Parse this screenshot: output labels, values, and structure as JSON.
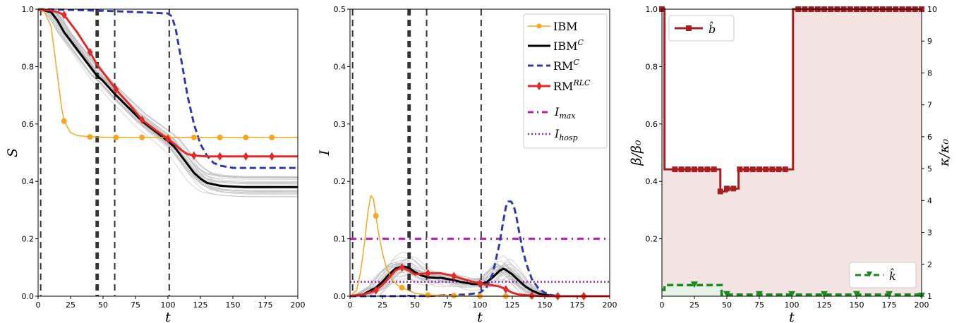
{
  "chart_data": [
    {
      "type": "line",
      "xlabel": "t",
      "ylabel": "S",
      "xlim": [
        0,
        200
      ],
      "ylim": [
        0,
        1
      ],
      "xticks": [
        0,
        25,
        50,
        75,
        100,
        125,
        150,
        175,
        200
      ],
      "yticks": [
        0.0,
        0.2,
        0.4,
        0.6,
        0.8,
        1.0
      ],
      "vlines": [
        2,
        45,
        46,
        59,
        101
      ],
      "series": [
        {
          "name": "IBM",
          "color": "#f5a623",
          "x": [
            0,
            5,
            10,
            14,
            18,
            20,
            25,
            30,
            40,
            60,
            80,
            100,
            120,
            140,
            160,
            180,
            200
          ],
          "y": [
            1.0,
            0.99,
            0.94,
            0.8,
            0.66,
            0.61,
            0.57,
            0.56,
            0.555,
            0.553,
            0.553,
            0.553,
            0.553,
            0.553,
            0.553,
            0.553,
            0.553
          ],
          "markers": [
            20,
            40,
            60,
            80,
            100,
            120,
            140,
            160,
            180
          ]
        },
        {
          "name": "IBM^C",
          "color": "#000000",
          "x": [
            0,
            10,
            15,
            20,
            30,
            40,
            45,
            50,
            60,
            70,
            80,
            90,
            100,
            105,
            110,
            115,
            120,
            125,
            130,
            140,
            150,
            160,
            200
          ],
          "y": [
            1.0,
            0.99,
            0.96,
            0.92,
            0.86,
            0.8,
            0.77,
            0.75,
            0.7,
            0.655,
            0.61,
            0.575,
            0.54,
            0.52,
            0.49,
            0.46,
            0.43,
            0.41,
            0.395,
            0.385,
            0.382,
            0.38,
            0.38
          ]
        },
        {
          "name": "RM^C",
          "color": "#2e3ba8",
          "x": [
            0,
            20,
            60,
            90,
            100,
            103,
            106,
            110,
            115,
            120,
            125,
            130,
            135,
            140,
            150,
            200
          ],
          "y": [
            1.0,
            0.998,
            0.993,
            0.987,
            0.985,
            0.975,
            0.93,
            0.83,
            0.7,
            0.6,
            0.53,
            0.49,
            0.465,
            0.455,
            0.447,
            0.447
          ]
        },
        {
          "name": "RM^RLC",
          "color": "#e02b2b",
          "x": [
            0,
            10,
            15,
            20,
            30,
            40,
            45,
            50,
            60,
            70,
            80,
            90,
            100,
            105,
            110,
            115,
            120,
            130,
            140,
            160,
            180,
            200
          ],
          "y": [
            1.0,
            0.995,
            0.99,
            0.98,
            0.92,
            0.85,
            0.81,
            0.78,
            0.72,
            0.67,
            0.615,
            0.58,
            0.548,
            0.53,
            0.51,
            0.495,
            0.49,
            0.487,
            0.487,
            0.487,
            0.487,
            0.487
          ],
          "markers": [
            20,
            40,
            60,
            80,
            100,
            120,
            140,
            160,
            180
          ]
        }
      ]
    },
    {
      "type": "line",
      "xlabel": "t",
      "ylabel": "I",
      "xlim": [
        0,
        200
      ],
      "ylim": [
        0,
        0.5
      ],
      "xticks": [
        0,
        25,
        50,
        75,
        100,
        125,
        150,
        175,
        200
      ],
      "yticks": [
        0.0,
        0.1,
        0.2,
        0.3,
        0.4,
        0.5
      ],
      "vlines": [
        2,
        45,
        46,
        59,
        101
      ],
      "hlines": [
        {
          "name": "I_max",
          "y": 0.1,
          "color": "#c41ab5"
        },
        {
          "name": "I_hosp",
          "y": 0.025,
          "color": "#a020c0"
        }
      ],
      "series": [
        {
          "name": "IBM",
          "color": "#f5a623",
          "x": [
            0,
            5,
            8,
            11,
            14,
            16,
            18,
            20,
            22,
            25,
            28,
            32,
            36,
            40,
            45,
            50,
            60,
            80,
            100,
            200
          ],
          "y": [
            0.0,
            0.01,
            0.04,
            0.09,
            0.15,
            0.175,
            0.17,
            0.14,
            0.11,
            0.075,
            0.05,
            0.03,
            0.02,
            0.015,
            0.01,
            0.005,
            0.002,
            0.001,
            0.0,
            0.0
          ],
          "markers": [
            20,
            40,
            60,
            80,
            100,
            120,
            140,
            160,
            180
          ]
        },
        {
          "name": "IBM^C",
          "color": "#000000",
          "x": [
            0,
            10,
            20,
            25,
            30,
            35,
            40,
            45,
            50,
            55,
            60,
            65,
            70,
            75,
            80,
            85,
            90,
            95,
            100,
            105,
            110,
            115,
            118,
            120,
            125,
            130,
            135,
            140,
            145,
            150,
            155,
            160,
            200
          ],
          "y": [
            0.0,
            0.003,
            0.015,
            0.025,
            0.038,
            0.048,
            0.052,
            0.05,
            0.042,
            0.036,
            0.033,
            0.032,
            0.032,
            0.03,
            0.028,
            0.025,
            0.023,
            0.021,
            0.021,
            0.024,
            0.033,
            0.044,
            0.048,
            0.046,
            0.038,
            0.027,
            0.017,
            0.01,
            0.005,
            0.002,
            0.001,
            0.0,
            0.0
          ]
        },
        {
          "name": "RM^C",
          "color": "#2e3ba8",
          "x": [
            0,
            60,
            90,
            100,
            105,
            110,
            115,
            118,
            120,
            122,
            124,
            126,
            128,
            130,
            133,
            136,
            140,
            145,
            150,
            155,
            160,
            200
          ],
          "y": [
            0.0,
            0.0003,
            0.003,
            0.006,
            0.015,
            0.04,
            0.09,
            0.13,
            0.155,
            0.165,
            0.165,
            0.158,
            0.14,
            0.115,
            0.08,
            0.055,
            0.03,
            0.014,
            0.006,
            0.002,
            0.0,
            0.0
          ]
        },
        {
          "name": "RM^RLC",
          "color": "#e02b2b",
          "x": [
            0,
            10,
            20,
            25,
            30,
            35,
            40,
            45,
            50,
            60,
            70,
            80,
            90,
            100,
            105,
            110,
            115,
            120,
            125,
            130,
            140,
            150,
            160,
            180,
            200
          ],
          "y": [
            0.0,
            0.003,
            0.01,
            0.02,
            0.032,
            0.045,
            0.05,
            0.045,
            0.038,
            0.04,
            0.04,
            0.035,
            0.028,
            0.022,
            0.02,
            0.019,
            0.017,
            0.012,
            0.006,
            0.003,
            0.001,
            0.0,
            0.0,
            0.0,
            0.0
          ],
          "markers": [
            20,
            40,
            60,
            80,
            100,
            120,
            140,
            160,
            180
          ]
        }
      ]
    },
    {
      "type": "line",
      "xlabel": "t",
      "ylabel": "β/β₀",
      "y2label": "κ/κ₀",
      "xlim": [
        0,
        200
      ],
      "ylim": [
        0,
        1
      ],
      "y2lim": [
        1,
        10
      ],
      "xticks": [
        0,
        25,
        50,
        75,
        100,
        125,
        150,
        175,
        200
      ],
      "yticks": [
        0.2,
        0.4,
        0.6,
        0.8,
        1.0
      ],
      "y2ticks": [
        1,
        2,
        3,
        4,
        5,
        6,
        7,
        8,
        9,
        10
      ],
      "series": [
        {
          "name": "b̂",
          "color": "#a51e22",
          "axis": "left",
          "step": true,
          "x": [
            0,
            2,
            45,
            50,
            59,
            101,
            200
          ],
          "y": [
            1.0,
            0.442,
            0.365,
            0.375,
            0.442,
            1.0,
            1.0
          ],
          "markers": [
            0,
            10,
            15,
            20,
            25,
            30,
            35,
            40,
            45,
            50,
            55,
            60,
            65,
            70,
            75,
            80,
            85,
            90,
            95,
            105,
            110,
            115,
            120,
            125,
            130,
            135,
            140,
            145,
            150,
            155,
            160,
            165,
            170,
            175,
            180,
            185,
            190,
            195,
            200
          ]
        },
        {
          "name": "k̂",
          "color": "#1a8a1f",
          "axis": "right",
          "step": true,
          "x": [
            0,
            2,
            45,
            46,
            200
          ],
          "y": [
            1.2,
            1.35,
            1.35,
            1.05,
            1.0
          ],
          "markers": [
            25,
            50,
            75,
            100,
            125,
            150,
            175,
            200
          ]
        }
      ]
    }
  ],
  "legend": {
    "position": "top-right",
    "entries": [
      {
        "id": "ibm",
        "base": "IBM",
        "sup": ""
      },
      {
        "id": "ibmc",
        "base": "IBM",
        "sup": "C"
      },
      {
        "id": "rmc",
        "base": "RM",
        "sup": "C"
      },
      {
        "id": "rmrlc",
        "base": "RM",
        "sup": "RLC"
      },
      {
        "id": "imax",
        "base": "I",
        "sub": "max"
      },
      {
        "id": "ihosp",
        "base": "I",
        "sub": "hosp"
      }
    ],
    "b_hat": "b̂",
    "k_hat": "k̂"
  }
}
